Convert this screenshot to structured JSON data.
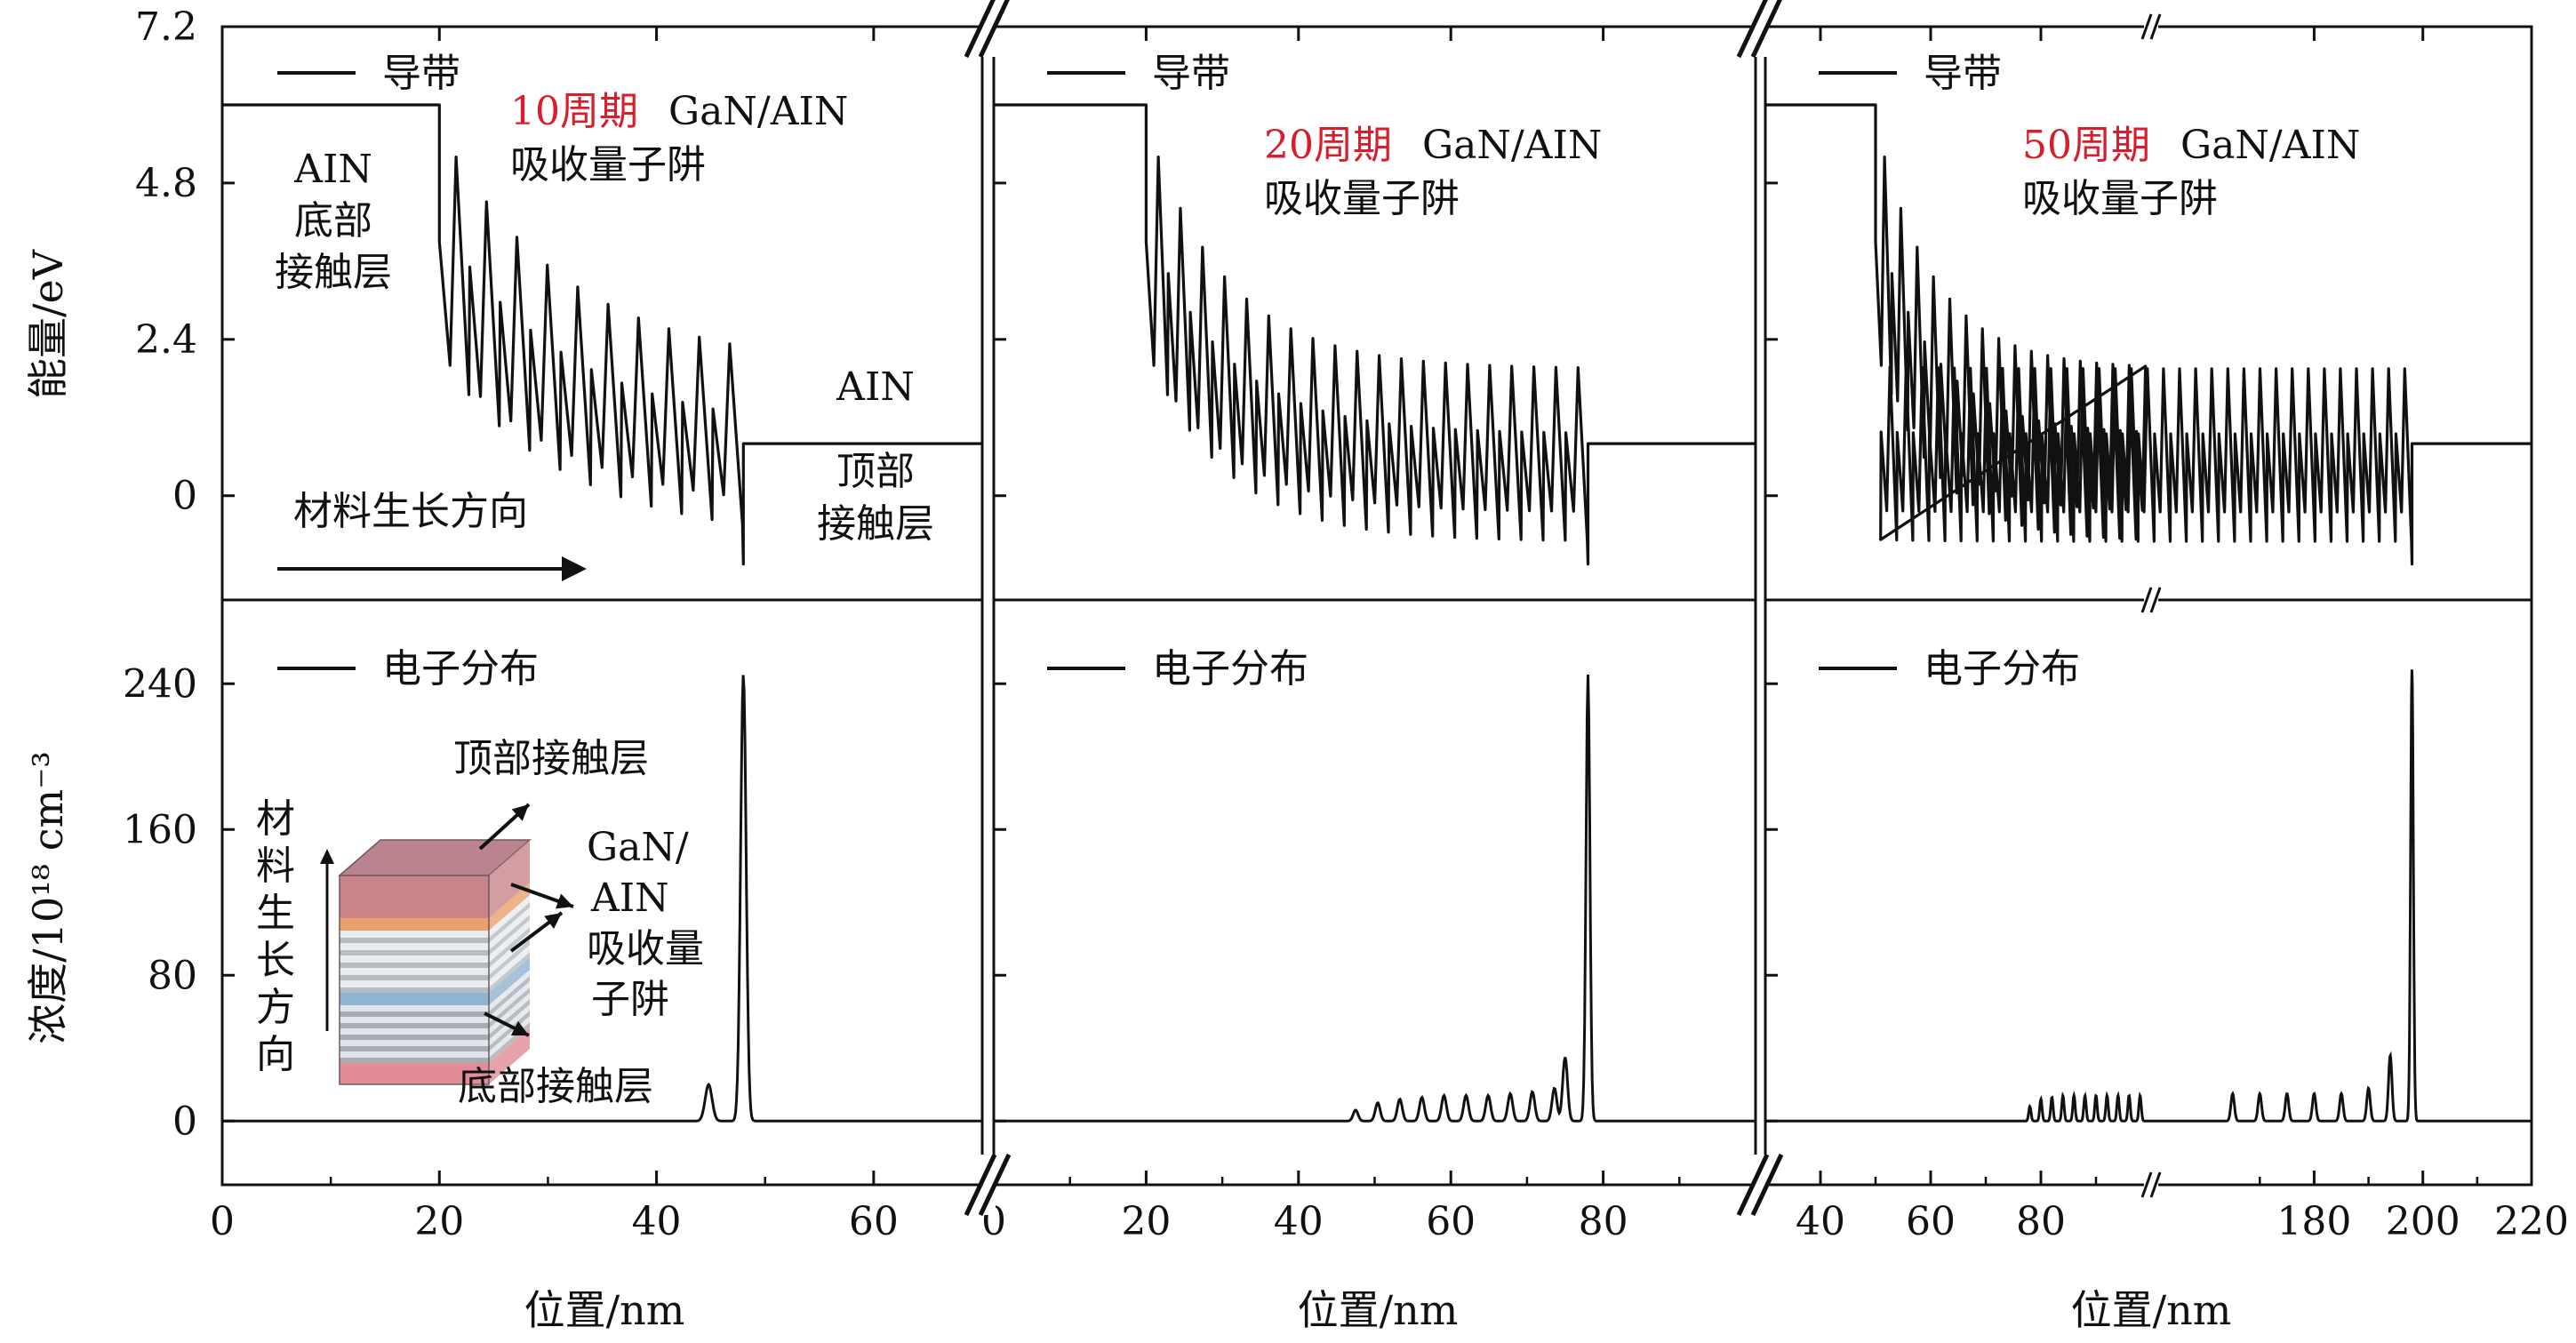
{
  "figure": {
    "ylabel_top": "能量/eV",
    "ylabel_bottom": "浓度/10¹⁸ cm⁻³",
    "xlabel": "位置/nm"
  },
  "chart_data": [
    {
      "type": "line",
      "panel": "top-left",
      "legend": [
        "导带"
      ],
      "annotation_periods": "10周期",
      "annotation_material": "GaN/AIN",
      "annotation_well": "吸收量子阱",
      "labels": {
        "bottom_contact": [
          "AIN",
          "底部",
          "接触层"
        ],
        "top_contact": [
          "AIN",
          "顶部",
          "接触层"
        ],
        "growth_direction": "材料生长方向"
      },
      "series": [
        {
          "name": "导带",
          "periods": 10,
          "x_start": 0,
          "barrier_start": 20,
          "mqw_end": 48,
          "x_end": 70,
          "left_level": 6.0,
          "right_level": 0.8
        }
      ],
      "xlim": [
        0,
        70
      ],
      "ylim": [
        -1.6,
        7.2
      ],
      "yticks": [
        0,
        2.4,
        4.8,
        7.2
      ],
      "ytick_labels": [
        "0",
        "2.4",
        "4.8",
        "7.2"
      ]
    },
    {
      "type": "line",
      "panel": "top-middle",
      "legend": [
        "导带"
      ],
      "annotation_periods": "20周期",
      "annotation_material": "GaN/AIN",
      "annotation_well": "吸收量子阱",
      "series": [
        {
          "name": "导带",
          "periods": 20,
          "x_start": 0,
          "barrier_start": 20,
          "mqw_end": 78,
          "x_end": 100,
          "left_level": 6.0,
          "right_level": 0.8
        }
      ],
      "xlim": [
        0,
        100
      ],
      "ylim": [
        -1.6,
        7.2
      ]
    },
    {
      "type": "line",
      "panel": "top-right",
      "legend": [
        "导带"
      ],
      "annotation_periods": "50周期",
      "annotation_material": "GaN/AIN",
      "annotation_well": "吸收量子阱",
      "series": [
        {
          "name": "导带",
          "periods": 50,
          "x_start": 30,
          "barrier_start": 50,
          "mqw_end": 198,
          "x_end": 220,
          "left_level": 6.0,
          "right_level": 0.8
        }
      ],
      "axis_break": "x",
      "ylim": [
        -1.6,
        7.2
      ]
    },
    {
      "type": "line",
      "panel": "bottom-left",
      "legend": [
        "电子分布"
      ],
      "inset_labels": {
        "top": "顶部接触层",
        "mqw": [
          "GaN/",
          "AIN",
          "吸收量",
          "子阱"
        ],
        "bottom": "底部接触层",
        "growth": [
          "材",
          "料",
          "生",
          "长",
          "方",
          "向"
        ]
      },
      "peaks": [
        {
          "x": 44.8,
          "y": 20
        },
        {
          "x": 48,
          "y": 245
        }
      ],
      "xlim": [
        0,
        70
      ],
      "xticks": [
        0,
        20,
        40,
        60
      ],
      "xtick_labels": [
        "0",
        "20",
        "40",
        "60"
      ],
      "ylim": [
        -35,
        285
      ],
      "yticks": [
        0,
        80,
        160,
        240
      ],
      "ytick_labels": [
        "0",
        "80",
        "160",
        "240"
      ]
    },
    {
      "type": "line",
      "panel": "bottom-middle",
      "legend": [
        "电子分布"
      ],
      "peaks": [
        {
          "x": 47.5,
          "y": 6
        },
        {
          "x": 50.4,
          "y": 10
        },
        {
          "x": 53.3,
          "y": 12
        },
        {
          "x": 56.2,
          "y": 13
        },
        {
          "x": 59.1,
          "y": 14
        },
        {
          "x": 62,
          "y": 14
        },
        {
          "x": 64.9,
          "y": 14
        },
        {
          "x": 67.8,
          "y": 15
        },
        {
          "x": 70.7,
          "y": 16
        },
        {
          "x": 73.6,
          "y": 18
        },
        {
          "x": 75,
          "y": 35
        },
        {
          "x": 78,
          "y": 245
        }
      ],
      "xlim": [
        0,
        100
      ],
      "xticks": [
        0,
        20,
        40,
        60,
        80
      ],
      "xtick_labels": [
        "0",
        "20",
        "40",
        "60",
        "80"
      ],
      "ylim": [
        -35,
        285
      ]
    },
    {
      "type": "line",
      "panel": "bottom-right",
      "legend": [
        "电子分布"
      ],
      "axis_break": "x",
      "peaks": [
        {
          "x": 78,
          "y": 8
        },
        {
          "x": 80,
          "y": 12
        },
        {
          "x": 82,
          "y": 13
        },
        {
          "x": 84,
          "y": 14
        },
        {
          "x": 86,
          "y": 14
        },
        {
          "x": 88,
          "y": 14
        },
        {
          "x": 90,
          "y": 14
        },
        {
          "x": 92,
          "y": 14
        },
        {
          "x": 94,
          "y": 14
        },
        {
          "x": 96,
          "y": 14
        },
        {
          "x": 98,
          "y": 14
        },
        {
          "x": 165,
          "y": 15
        },
        {
          "x": 170,
          "y": 15
        },
        {
          "x": 175,
          "y": 15
        },
        {
          "x": 180,
          "y": 15
        },
        {
          "x": 185,
          "y": 15
        },
        {
          "x": 190,
          "y": 18
        },
        {
          "x": 194,
          "y": 36
        },
        {
          "x": 198,
          "y": 248
        }
      ],
      "xticks": [
        40,
        60,
        80,
        180,
        200,
        220
      ],
      "xtick_labels": [
        "40",
        "60",
        "80",
        "180",
        "200",
        "220"
      ],
      "ylim": [
        -35,
        285
      ]
    }
  ]
}
